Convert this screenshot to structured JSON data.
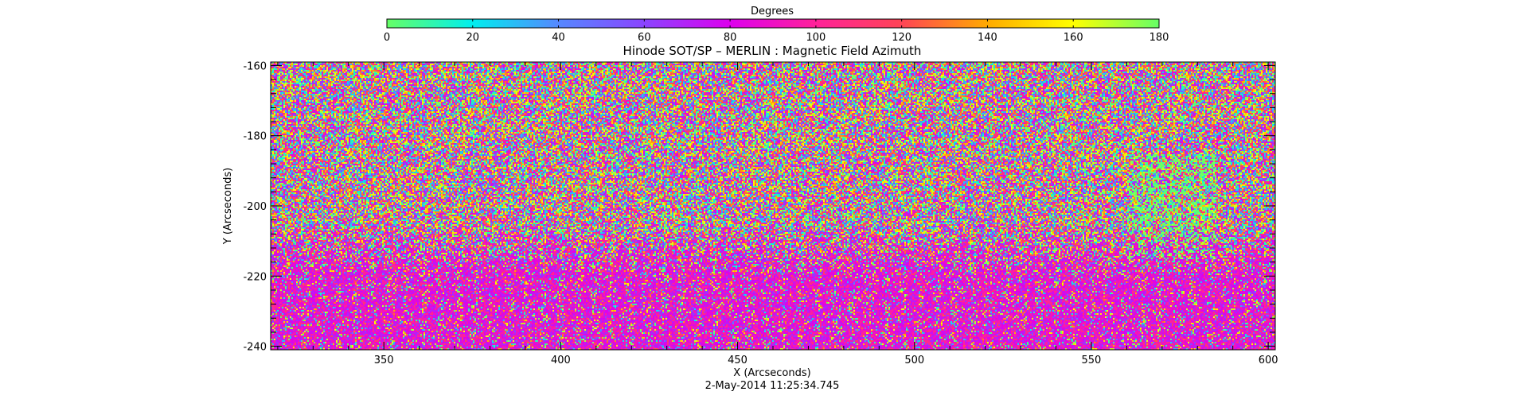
{
  "chart_data": {
    "type": "heatmap",
    "title": "Hinode SOT/SP – MERLIN : Magnetic Field Azimuth",
    "xlabel": "X (Arcseconds)",
    "ylabel": "Y (Arcseconds)",
    "timestamp": "2-May-2014 11:25:34.745",
    "xlim": [
      318,
      602
    ],
    "ylim": [
      -241,
      -159
    ],
    "x_ticks": [
      "350",
      "400",
      "450",
      "500",
      "550",
      "600"
    ],
    "x_tick_values": [
      350,
      400,
      450,
      500,
      550,
      600
    ],
    "y_ticks": [
      "-160",
      "-180",
      "-200",
      "-220",
      "-240"
    ],
    "y_tick_values": [
      -160,
      -180,
      -200,
      -220,
      -240
    ],
    "colorbar": {
      "label": "Degrees",
      "range": [
        0,
        180
      ],
      "ticks": [
        "0",
        "20",
        "40",
        "60",
        "80",
        "100",
        "120",
        "140",
        "160",
        "180"
      ],
      "tick_values": [
        0,
        20,
        40,
        60,
        80,
        100,
        120,
        140,
        160,
        180
      ],
      "colors": [
        "#66ff66",
        "#00eeee",
        "#5588ff",
        "#8a44ff",
        "#dd00ee",
        "#ff2299",
        "#ff4455",
        "#ffaa00",
        "#ffff00",
        "#66ff66"
      ]
    },
    "field_description": "noisy azimuth map; mixed hues above, predominantly magenta (~90-110 deg) below Y=-210",
    "grid": false,
    "legend": "colorbar top"
  }
}
